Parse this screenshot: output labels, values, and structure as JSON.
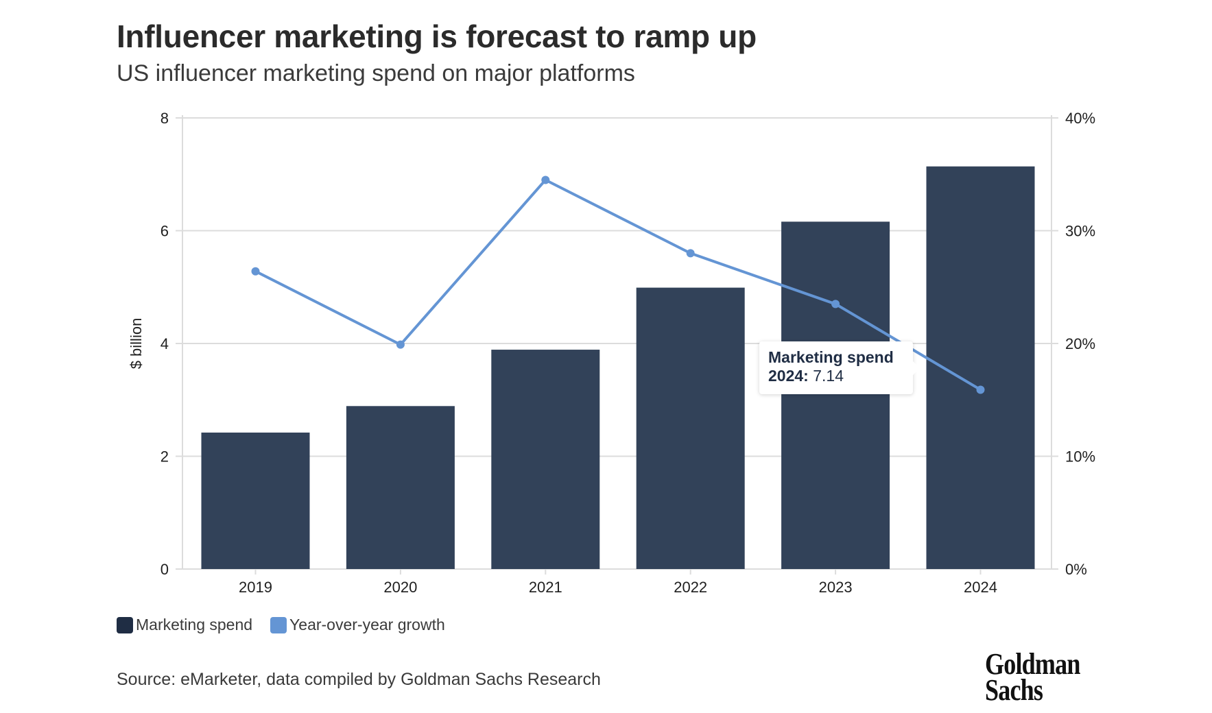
{
  "chart_data": {
    "type": "bar",
    "title": "Influencer marketing is forecast to ramp up",
    "subtitle": "US influencer marketing spend on major platforms",
    "categories": [
      "2019",
      "2020",
      "2021",
      "2022",
      "2023",
      "2024"
    ],
    "series": [
      {
        "name": "Marketing spend",
        "type": "bar",
        "axis": "left",
        "values": [
          2.42,
          2.89,
          3.89,
          4.99,
          6.16,
          7.14
        ],
        "color": "#324259"
      },
      {
        "name": "Year-over-year growth",
        "type": "line",
        "axis": "right",
        "values": [
          26.4,
          19.9,
          34.5,
          28.0,
          23.5,
          15.9
        ],
        "color": "#6495d4"
      }
    ],
    "ylabel": "$ billion",
    "ylim": [
      0,
      8
    ],
    "yticks": [
      "0",
      "2",
      "4",
      "6",
      "8"
    ],
    "y2lim": [
      0,
      40
    ],
    "y2ticks": [
      "0%",
      "10%",
      "20%",
      "30%",
      "40%"
    ],
    "grid": true,
    "legend_position": "bottom-left",
    "tooltip": {
      "series": "Marketing spend",
      "label": "2024:",
      "value": "7.14"
    }
  },
  "source": "Source: eMarketer, data compiled by Goldman Sachs Research",
  "logo": {
    "line1": "Goldman",
    "line2": "Sachs"
  }
}
